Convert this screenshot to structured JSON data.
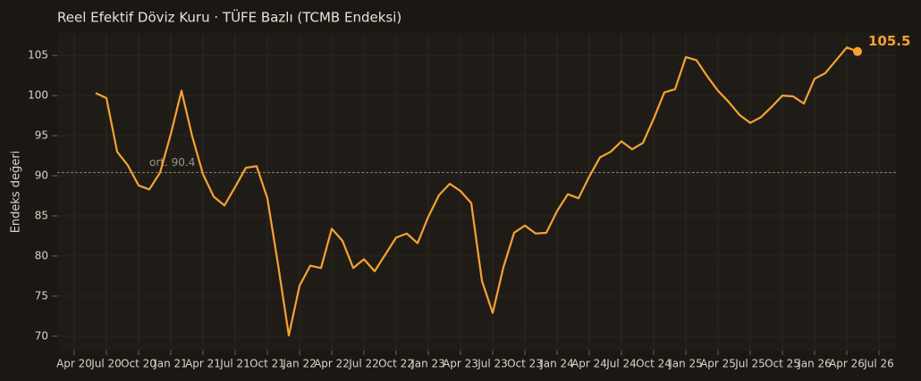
{
  "chart_data": {
    "type": "line",
    "title": "Reel Efektif Döviz Kuru · TÜFE Bazlı (TCMB Endeksi)",
    "y_label": "Endeks değeri",
    "x": [
      "2020-06",
      "2020-07",
      "2020-08",
      "2020-09",
      "2020-10",
      "2020-11",
      "2020-12",
      "2021-01",
      "2021-02",
      "2021-03",
      "2021-04",
      "2021-05",
      "2021-06",
      "2021-07",
      "2021-08",
      "2021-09",
      "2021-10",
      "2021-11",
      "2021-12",
      "2022-01",
      "2022-02",
      "2022-03",
      "2022-04",
      "2022-05",
      "2022-06",
      "2022-07",
      "2022-08",
      "2022-09",
      "2022-10",
      "2022-11",
      "2022-12",
      "2023-01",
      "2023-02",
      "2023-03",
      "2023-04",
      "2023-05",
      "2023-06",
      "2023-07",
      "2023-08",
      "2023-09",
      "2023-10",
      "2023-11",
      "2023-12",
      "2024-01",
      "2024-02",
      "2024-03",
      "2024-04",
      "2024-05",
      "2024-06",
      "2024-07",
      "2024-08",
      "2024-09",
      "2024-10",
      "2024-11",
      "2024-12",
      "2025-01",
      "2025-02",
      "2025-03",
      "2025-04",
      "2025-05",
      "2025-06",
      "2025-07",
      "2025-08",
      "2025-09",
      "2025-10",
      "2025-11",
      "2025-12",
      "2026-01",
      "2026-02",
      "2026-03",
      "2026-04",
      "2026-05"
    ],
    "values": [
      100.3,
      99.7,
      93.0,
      91.3,
      88.8,
      88.3,
      90.4,
      95.2,
      100.6,
      94.9,
      90.2,
      87.4,
      86.3,
      88.6,
      91.0,
      91.2,
      87.2,
      78.9,
      70.1,
      76.3,
      78.8,
      78.5,
      83.4,
      81.9,
      78.5,
      79.6,
      78.1,
      80.2,
      82.3,
      82.8,
      81.6,
      84.9,
      87.6,
      89.0,
      88.1,
      86.6,
      76.9,
      72.9,
      78.6,
      82.9,
      83.8,
      82.8,
      82.9,
      85.6,
      87.7,
      87.2,
      89.9,
      92.3,
      93.0,
      94.3,
      93.3,
      94.1,
      97.1,
      100.4,
      100.8,
      104.8,
      104.4,
      102.4,
      100.6,
      99.2,
      97.6,
      96.6,
      97.3,
      98.6,
      100.0,
      99.9,
      99.0,
      102.1,
      102.8,
      104.4,
      106.0,
      105.5
    ],
    "color": "#f5a233",
    "last_value_label": "105.5",
    "mean_line": {
      "value": 90.4,
      "label": "ort. 90.4"
    },
    "xlim": [
      "2020-02",
      "2026-08"
    ],
    "xticks": [
      {
        "value": "2020-04",
        "label": "Apr 20"
      },
      {
        "value": "2020-07",
        "label": "Jul 20"
      },
      {
        "value": "2020-10",
        "label": "Oct 20"
      },
      {
        "value": "2021-01",
        "label": "Jan 21"
      },
      {
        "value": "2021-04",
        "label": "Apr 21"
      },
      {
        "value": "2021-07",
        "label": "Jul 21"
      },
      {
        "value": "2021-10",
        "label": "Oct 21"
      },
      {
        "value": "2022-01",
        "label": "Jan 22"
      },
      {
        "value": "2022-04",
        "label": "Apr 22"
      },
      {
        "value": "2022-07",
        "label": "Jul 22"
      },
      {
        "value": "2022-10",
        "label": "Oct 22"
      },
      {
        "value": "2023-01",
        "label": "Jan 23"
      },
      {
        "value": "2023-04",
        "label": "Apr 23"
      },
      {
        "value": "2023-07",
        "label": "Jul 23"
      },
      {
        "value": "2023-10",
        "label": "Oct 23"
      },
      {
        "value": "2024-01",
        "label": "Jan 24"
      },
      {
        "value": "2024-04",
        "label": "Apr 24"
      },
      {
        "value": "2024-07",
        "label": "Jul 24"
      },
      {
        "value": "2024-10",
        "label": "Oct 24"
      },
      {
        "value": "2025-01",
        "label": "Jan 25"
      },
      {
        "value": "2025-04",
        "label": "Apr 25"
      },
      {
        "value": "2025-07",
        "label": "Jul 25"
      },
      {
        "value": "2025-10",
        "label": "Oct 25"
      },
      {
        "value": "2026-01",
        "label": "Jan 26"
      },
      {
        "value": "2026-04",
        "label": "Apr 26"
      },
      {
        "value": "2026-07",
        "label": "Jul 26"
      }
    ],
    "ylim": [
      68.2,
      107.8
    ],
    "yticks": [
      70,
      75,
      80,
      85,
      90,
      95,
      100,
      105
    ],
    "grid": true
  }
}
